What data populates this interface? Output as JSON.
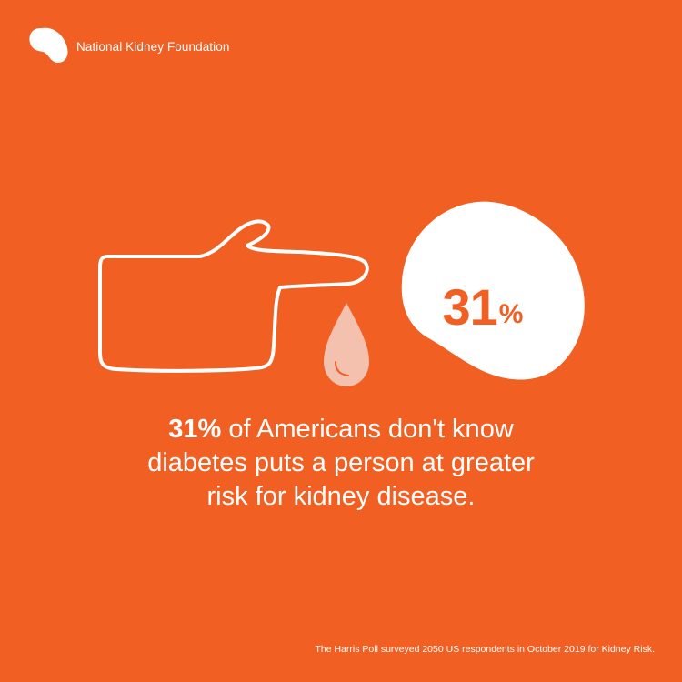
{
  "brand": {
    "name": "National Kidney Foundation",
    "logo_icon": "kidney-bean-icon",
    "color": "#FFFFFF"
  },
  "background_color": "#F15F22",
  "illustration": {
    "hand_icon": "pointing-hand-outline-icon",
    "drop_icon": "blood-drop-icon",
    "drop_color": "#F3C1AE",
    "kidney_icon": "kidney-shape-icon",
    "kidney_color": "#FFFFFF",
    "percent_value": "31",
    "percent_symbol": "%"
  },
  "headline": {
    "stat": "31%",
    "line1_rest": " of Americans don't know",
    "line2": "diabetes puts a person at greater",
    "line3": "risk for kidney disease."
  },
  "source_note": "The Harris Poll surveyed 2050 US respondents in October 2019 for Kidney Risk."
}
